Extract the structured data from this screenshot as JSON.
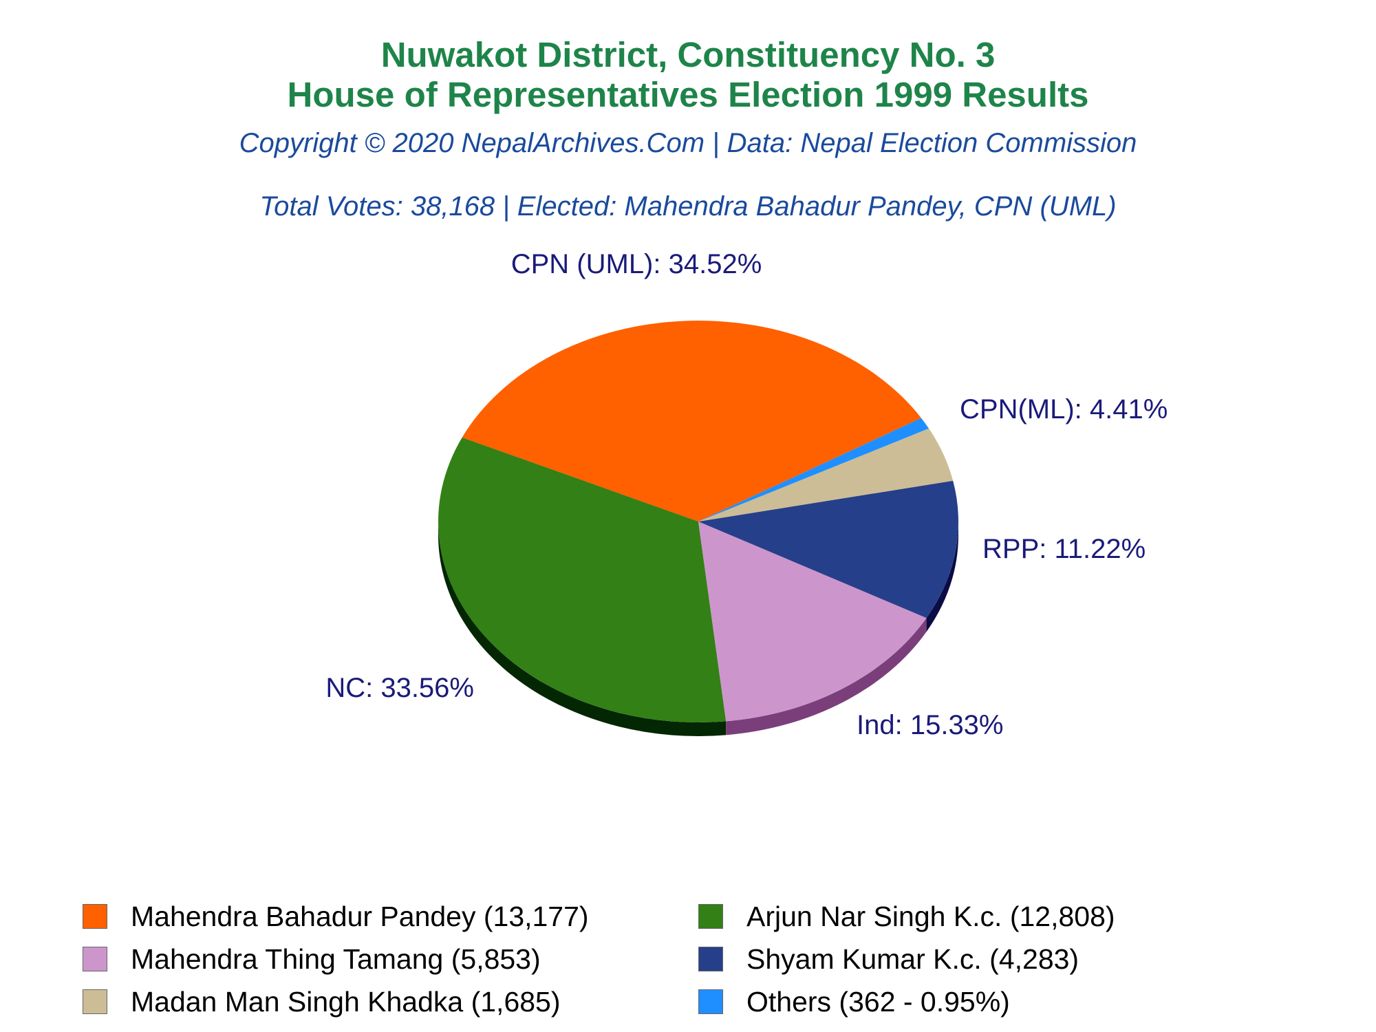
{
  "header": {
    "title_line1": "Nuwakot District, Constituency No. 3",
    "title_line2": "House of Representatives Election 1999 Results",
    "copyright": "Copyright © 2020 NepalArchives.Com | Data: Nepal Election Commission",
    "summary": "Total Votes: 38,168 | Elected: Mahendra Bahadur Pandey, CPN (UML)"
  },
  "chart_data": {
    "type": "pie",
    "start_angle_deg": 31,
    "direction": "counterclockwise",
    "slices": [
      {
        "label": "CPN (UML): 34.52%",
        "party": "CPN (UML)",
        "value": 34.52,
        "color": "#ff6000",
        "shade": "#a33d00"
      },
      {
        "label": "NC: 33.56%",
        "party": "NC",
        "value": 33.56,
        "color": "#338016",
        "shade": "#032603"
      },
      {
        "label": "Ind: 15.33%",
        "party": "Ind",
        "value": 15.33,
        "color": "#cc96cc",
        "shade": "#7a3f7a"
      },
      {
        "label": "RPP: 11.22%",
        "party": "RPP",
        "value": 11.22,
        "color": "#263f8a",
        "shade": "#0b0b45"
      },
      {
        "label": "CPN(ML): 4.41%",
        "party": "CPN(ML)",
        "value": 4.41,
        "color": "#ccbd96",
        "shade": "#7a6f52"
      },
      {
        "label": "",
        "party": "Others",
        "value": 0.95,
        "color": "#1f8fff",
        "shade": "#0d4f99"
      }
    ]
  },
  "legend": [
    {
      "text": "Mahendra Bahadur Pandey (13,177)",
      "color": "#ff6000"
    },
    {
      "text": "Arjun Nar Singh K.c. (12,808)",
      "color": "#338016"
    },
    {
      "text": "Mahendra Thing Tamang (5,853)",
      "color": "#cc96cc"
    },
    {
      "text": "Shyam Kumar K.c. (4,283)",
      "color": "#263f8a"
    },
    {
      "text": "Madan Man Singh Khadka (1,685)",
      "color": "#ccbd96"
    },
    {
      "text": "Others (362 - 0.95%)",
      "color": "#1f8fff"
    }
  ]
}
